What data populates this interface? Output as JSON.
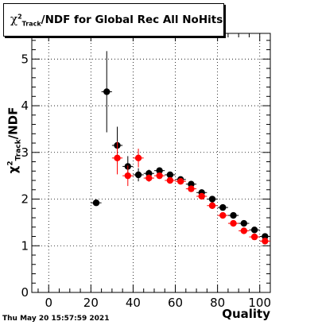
{
  "title": {
    "prefix": "χ",
    "sup": "2",
    "sub": "Track",
    "rest": "/NDF for Global Rec All NoHits"
  },
  "axes": {
    "ylabel_prefix": "χ",
    "ylabel_sup": "2",
    "ylabel_sub": "Track",
    "ylabel_rest": "/NDF",
    "xlabel": "Quality"
  },
  "timestamp": "Thu May 20 15:57:59 2021",
  "colors": {
    "series1": "#000000",
    "series2": "#ff0000",
    "grid": "#000000",
    "frame": "#000000"
  },
  "chart_data": {
    "type": "scatter",
    "xlim": [
      -8,
      105
    ],
    "ylim": [
      0,
      5.55
    ],
    "xticks": [
      0,
      20,
      40,
      60,
      80,
      100
    ],
    "xtick_labels": [
      "0",
      "20",
      "40",
      "60",
      "80",
      "100"
    ],
    "yticks": [
      0,
      1,
      2,
      3,
      4,
      5
    ],
    "ytick_labels": [
      "0",
      "1",
      "2",
      "3",
      "4",
      "5"
    ],
    "grid": true,
    "series": [
      {
        "color": "#000000",
        "points": [
          {
            "x": 22.5,
            "y": 1.92,
            "err": 0.04
          },
          {
            "x": 27.5,
            "y": 4.3,
            "err": 0.87
          },
          {
            "x": 32.5,
            "y": 3.15,
            "err": 0.4
          },
          {
            "x": 37.5,
            "y": 2.7,
            "err": 0.22
          },
          {
            "x": 42.5,
            "y": 2.52,
            "err": 0.14
          },
          {
            "x": 47.5,
            "y": 2.55,
            "err": 0.08
          },
          {
            "x": 52.5,
            "y": 2.61,
            "err": 0.06
          },
          {
            "x": 57.5,
            "y": 2.52,
            "err": 0.05
          },
          {
            "x": 62.5,
            "y": 2.42,
            "err": 0.04
          },
          {
            "x": 67.5,
            "y": 2.32,
            "err": 0.03
          },
          {
            "x": 72.5,
            "y": 2.14,
            "err": 0.03
          },
          {
            "x": 77.5,
            "y": 2.0,
            "err": 0.03
          },
          {
            "x": 82.5,
            "y": 1.82,
            "err": 0.03
          },
          {
            "x": 87.5,
            "y": 1.65,
            "err": 0.03
          },
          {
            "x": 92.5,
            "y": 1.48,
            "err": 0.03
          },
          {
            "x": 97.5,
            "y": 1.34,
            "err": 0.03
          },
          {
            "x": 102.5,
            "y": 1.2,
            "err": 0.03
          }
        ]
      },
      {
        "color": "#ff0000",
        "points": [
          {
            "x": 32.5,
            "y": 2.88,
            "err": 0.35
          },
          {
            "x": 37.5,
            "y": 2.5,
            "err": 0.22
          },
          {
            "x": 42.5,
            "y": 2.88,
            "err": 0.2
          },
          {
            "x": 47.5,
            "y": 2.45,
            "err": 0.08
          },
          {
            "x": 52.5,
            "y": 2.5,
            "err": 0.06
          },
          {
            "x": 57.5,
            "y": 2.4,
            "err": 0.05
          },
          {
            "x": 62.5,
            "y": 2.38,
            "err": 0.04
          },
          {
            "x": 67.5,
            "y": 2.22,
            "err": 0.03
          },
          {
            "x": 72.5,
            "y": 2.06,
            "err": 0.03
          },
          {
            "x": 77.5,
            "y": 1.86,
            "err": 0.03
          },
          {
            "x": 82.5,
            "y": 1.65,
            "err": 0.03
          },
          {
            "x": 87.5,
            "y": 1.48,
            "err": 0.03
          },
          {
            "x": 92.5,
            "y": 1.32,
            "err": 0.03
          },
          {
            "x": 97.5,
            "y": 1.19,
            "err": 0.03
          },
          {
            "x": 102.5,
            "y": 1.1,
            "err": 0.03
          }
        ]
      }
    ]
  }
}
